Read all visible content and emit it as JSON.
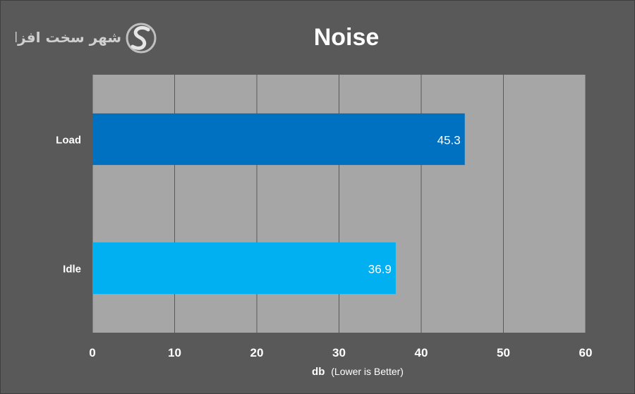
{
  "logo": {
    "text": "شهر سخت افزار",
    "icon": "s-swoosh-logo-icon"
  },
  "chart_data": {
    "type": "bar",
    "orientation": "horizontal",
    "title": "Noise",
    "xlabel_bold": "db",
    "xlabel_rest": "(Lower is Better)",
    "ylabel": "",
    "categories": [
      "Load",
      "Idle"
    ],
    "values": [
      45.3,
      36.9
    ],
    "data_labels": [
      "45.3",
      "36.9"
    ],
    "bar_colors": [
      "#0070C0",
      "#00B0F0"
    ],
    "xlim": [
      0,
      60
    ],
    "xticks": [
      0,
      10,
      20,
      30,
      40,
      50,
      60
    ],
    "tick_labels": [
      "0",
      "10",
      "20",
      "30",
      "40",
      "50",
      "60"
    ],
    "grid": true,
    "legend": "none"
  },
  "colors": {
    "background": "#595959",
    "plot_area": "#A6A6A6",
    "gridline": "#595959",
    "text": "#FFFFFF"
  }
}
